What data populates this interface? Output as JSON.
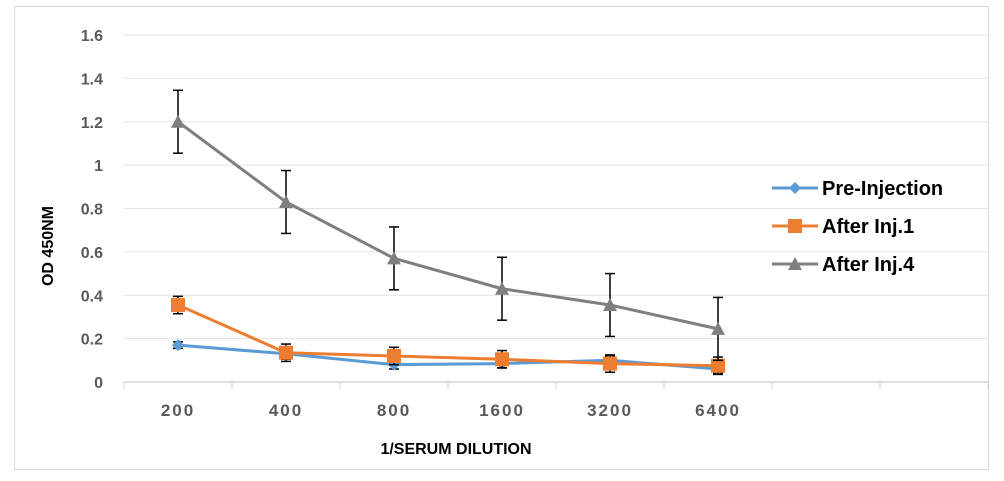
{
  "chart_data": {
    "type": "line",
    "title": "",
    "xlabel": "1/SERUM DILUTION",
    "ylabel": "OD 450NM",
    "categories": [
      "200",
      "400",
      "800",
      "1600",
      "3200",
      "6400"
    ],
    "x_slots": 8,
    "ylim": [
      0,
      1.6
    ],
    "yticks": [
      "0",
      "0.2",
      "0.4",
      "0.6",
      "0.8",
      "1",
      "1.2",
      "1.4",
      "1.6"
    ],
    "grid": true,
    "legend_position": "right",
    "series": [
      {
        "name": "Pre-Injection",
        "color": "#5b9bd5",
        "marker": "diamond",
        "values": [
          0.17,
          0.13,
          0.08,
          0.085,
          0.1,
          0.06
        ],
        "error": [
          0.015,
          0.025,
          0.02,
          0.02,
          0.02,
          0.02
        ]
      },
      {
        "name": "After Inj.1",
        "color": "#ed7d31",
        "marker": "square",
        "values": [
          0.355,
          0.135,
          0.12,
          0.105,
          0.085,
          0.075
        ],
        "error": [
          0.04,
          0.04,
          0.04,
          0.04,
          0.04,
          0.04
        ]
      },
      {
        "name": "After Inj.4",
        "color": "#7f7f7f",
        "marker": "triangle",
        "values": [
          1.2,
          0.83,
          0.57,
          0.43,
          0.355,
          0.245
        ],
        "error": [
          0.145,
          0.145,
          0.145,
          0.145,
          0.145,
          0.145
        ]
      }
    ]
  }
}
